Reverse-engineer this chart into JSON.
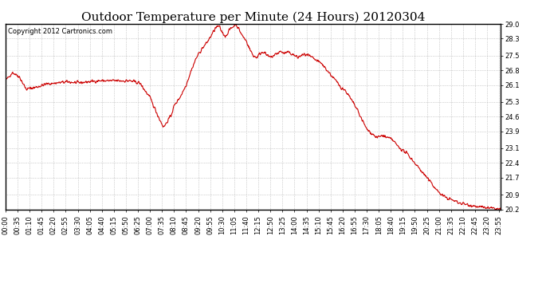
{
  "title": "Outdoor Temperature per Minute (24 Hours) 20120304",
  "copyright": "Copyright 2012 Cartronics.com",
  "line_color": "#cc0000",
  "bg_color": "#ffffff",
  "plot_bg_color": "#ffffff",
  "grid_color": "#aaaaaa",
  "yticks": [
    20.2,
    20.9,
    21.7,
    22.4,
    23.1,
    23.9,
    24.6,
    25.3,
    26.1,
    26.8,
    27.5,
    28.3,
    29.0
  ],
  "ymin": 20.2,
  "ymax": 29.0,
  "xtick_interval_minutes": 35,
  "total_minutes": 1440,
  "title_fontsize": 11,
  "copyright_fontsize": 6,
  "tick_fontsize": 6,
  "line_width": 0.8,
  "keyframes_minutes": [
    0,
    20,
    40,
    60,
    90,
    120,
    150,
    180,
    210,
    240,
    270,
    300,
    330,
    360,
    390,
    420,
    450,
    460,
    475,
    480,
    490,
    510,
    525,
    540,
    555,
    570,
    585,
    600,
    610,
    620,
    630,
    640,
    650,
    660,
    670,
    680,
    690,
    700,
    710,
    720,
    730,
    740,
    750,
    760,
    770,
    780,
    790,
    800,
    810,
    820,
    830,
    840,
    850,
    860,
    870,
    880,
    900,
    920,
    940,
    960,
    975,
    990,
    1005,
    1020,
    1035,
    1050,
    1065,
    1080,
    1095,
    1110,
    1125,
    1140,
    1155,
    1170,
    1185,
    1200,
    1215,
    1230,
    1245,
    1260,
    1275,
    1290,
    1305,
    1320,
    1335,
    1350,
    1365,
    1380,
    1395,
    1410,
    1425,
    1439
  ],
  "keyframes_values": [
    26.3,
    26.7,
    26.5,
    25.9,
    26.0,
    26.15,
    26.2,
    26.25,
    26.2,
    26.25,
    26.3,
    26.3,
    26.3,
    26.3,
    26.2,
    25.5,
    24.4,
    24.1,
    24.5,
    24.6,
    25.1,
    25.6,
    26.1,
    26.8,
    27.4,
    27.8,
    28.1,
    28.5,
    28.8,
    28.9,
    28.6,
    28.4,
    28.7,
    28.85,
    29.0,
    28.7,
    28.4,
    28.2,
    27.8,
    27.5,
    27.4,
    27.6,
    27.7,
    27.5,
    27.4,
    27.5,
    27.6,
    27.7,
    27.6,
    27.65,
    27.6,
    27.5,
    27.4,
    27.5,
    27.55,
    27.5,
    27.3,
    27.1,
    26.7,
    26.3,
    26.0,
    25.8,
    25.4,
    25.0,
    24.5,
    24.0,
    23.8,
    23.6,
    23.7,
    23.6,
    23.5,
    23.2,
    23.0,
    22.8,
    22.5,
    22.2,
    21.9,
    21.6,
    21.3,
    21.0,
    20.8,
    20.7,
    20.6,
    20.5,
    20.45,
    20.4,
    20.35,
    20.3,
    20.28,
    20.25,
    20.22,
    20.2
  ]
}
